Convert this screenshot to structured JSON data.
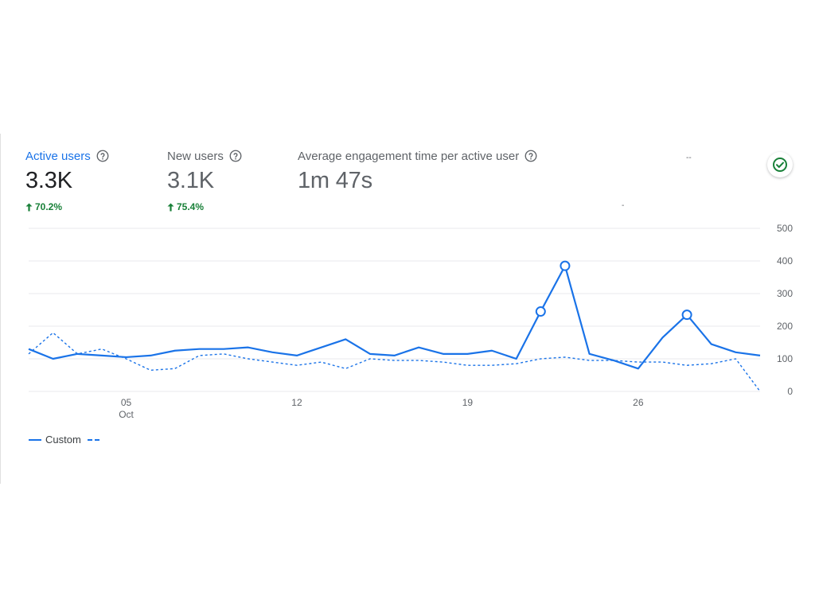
{
  "metrics": [
    {
      "label": "Active users",
      "value": "3.3K",
      "change": "70.2%"
    },
    {
      "label": "New users",
      "value": "3.1K",
      "change": "75.4%"
    },
    {
      "label": "Average engagement time per active user",
      "value": "1m 47s"
    }
  ],
  "dash_marks": [
    "--",
    "-"
  ],
  "legend": {
    "series_label": "Custom"
  },
  "colors": {
    "accent": "#1a73e8",
    "positive": "#188038",
    "grid": "#e8eaed",
    "text_muted": "#5f6368"
  },
  "icons": {
    "help": "help-circle-icon",
    "status": "check-circle-icon",
    "trend": "arrow-up-icon"
  },
  "chart_data": {
    "type": "line",
    "x_tick_labels": [
      {
        "day": 5,
        "label": "05",
        "sublabel": "Oct"
      },
      {
        "day": 12,
        "label": "12"
      },
      {
        "day": 19,
        "label": "19"
      },
      {
        "day": 26,
        "label": "26"
      }
    ],
    "y_ticks": [
      0,
      100,
      200,
      300,
      400,
      500
    ],
    "ylim": [
      0,
      500
    ],
    "xlim": [
      1,
      31
    ],
    "x": [
      1,
      2,
      3,
      4,
      5,
      6,
      7,
      8,
      9,
      10,
      11,
      12,
      13,
      14,
      15,
      16,
      17,
      18,
      19,
      20,
      21,
      22,
      23,
      24,
      25,
      26,
      27,
      28,
      29,
      30,
      31
    ],
    "y_axis_position": "right",
    "grid": true,
    "series": [
      {
        "name": "Custom",
        "style": "solid",
        "values": [
          130,
          100,
          115,
          110,
          105,
          110,
          125,
          130,
          130,
          135,
          120,
          110,
          135,
          160,
          115,
          110,
          135,
          115,
          115,
          125,
          100,
          245,
          385,
          115,
          95,
          70,
          165,
          235,
          145,
          120,
          110
        ],
        "highlighted_days": [
          22,
          23,
          28
        ]
      },
      {
        "style": "dashed",
        "values": [
          115,
          180,
          115,
          130,
          100,
          65,
          70,
          110,
          115,
          100,
          90,
          80,
          90,
          70,
          100,
          95,
          95,
          90,
          80,
          80,
          85,
          100,
          105,
          95,
          95,
          90,
          90,
          80,
          85,
          100,
          0
        ]
      }
    ]
  }
}
